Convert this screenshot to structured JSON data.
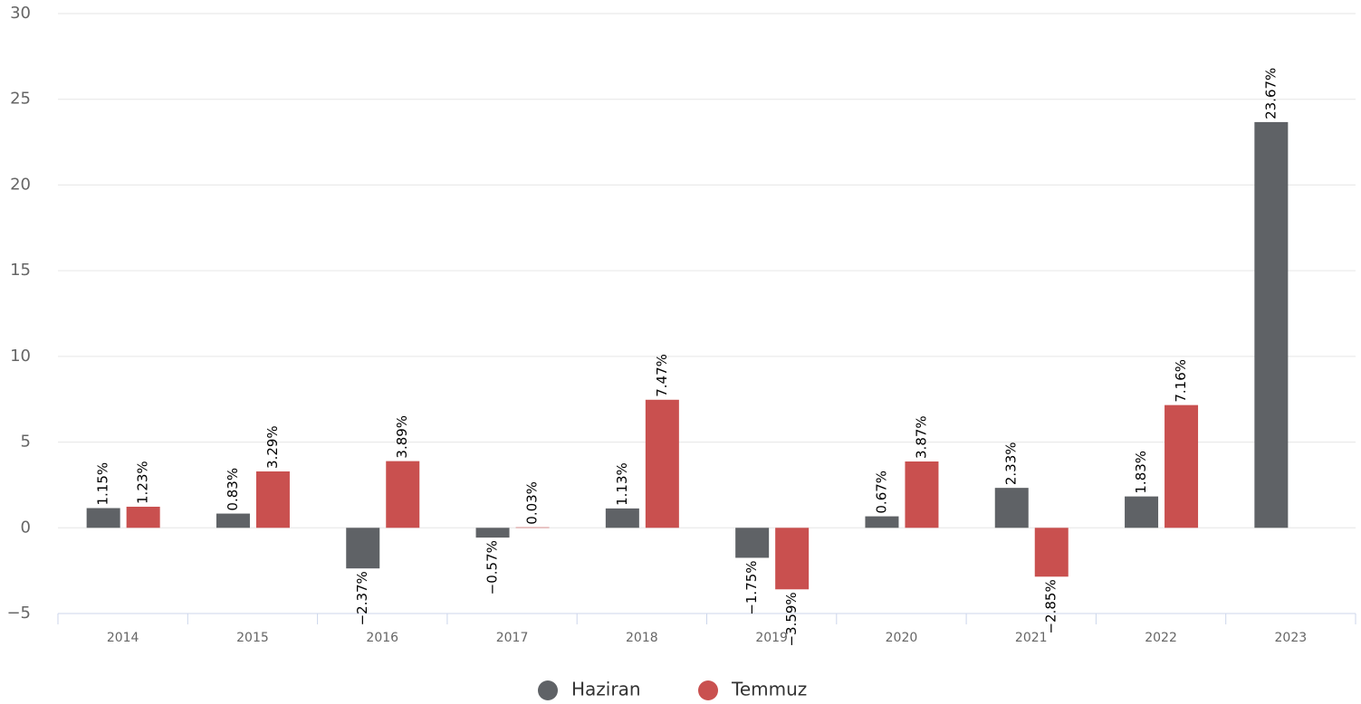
{
  "chart_data": {
    "type": "bar",
    "categories": [
      "2014",
      "2015",
      "2016",
      "2017",
      "2018",
      "2019",
      "2020",
      "2021",
      "2022",
      "2023"
    ],
    "series": [
      {
        "name": "Haziran",
        "color": "#5f6266",
        "values": [
          1.15,
          0.83,
          -2.37,
          -0.57,
          1.13,
          -1.75,
          0.67,
          2.33,
          1.83,
          23.67
        ],
        "value_labels": [
          "1.15%",
          "0.83%",
          "−2.37%",
          "−0.57%",
          "1.13%",
          "−1.75%",
          "0.67%",
          "2.33%",
          "1.83%",
          "23.67%"
        ]
      },
      {
        "name": "Temmuz",
        "color": "#c9504f",
        "values": [
          1.23,
          3.29,
          3.89,
          0.03,
          7.47,
          -3.59,
          3.87,
          -2.85,
          7.16,
          null
        ],
        "value_labels": [
          "1.23%",
          "3.29%",
          "3.89%",
          "0.03%",
          "7.47%",
          "−3.59%",
          "3.87%",
          "−2.85%",
          "7.16%",
          null
        ]
      }
    ],
    "ylim": [
      -5,
      30
    ],
    "yticks": [
      {
        "value": -5,
        "label": "−5"
      },
      0,
      5,
      10,
      15,
      20,
      25,
      30
    ],
    "grid": true
  }
}
